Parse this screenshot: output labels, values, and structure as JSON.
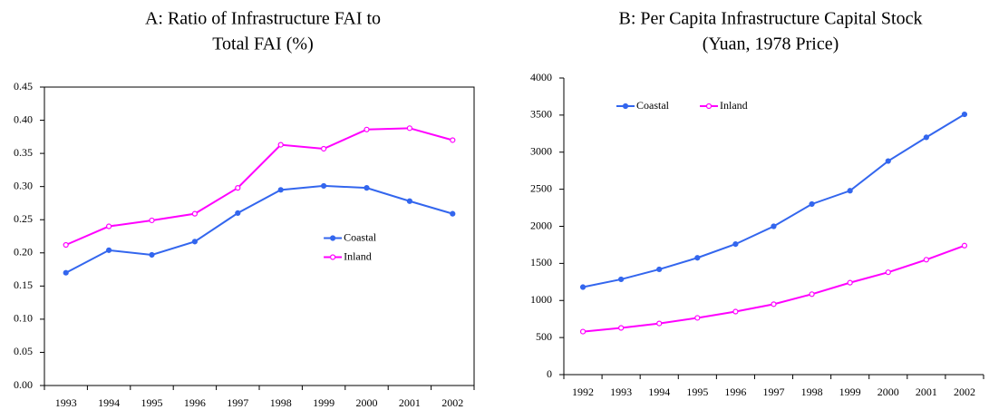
{
  "chart_data": [
    {
      "type": "line",
      "title": [
        "A: Ratio of Infrastructure FAI to",
        "Total FAI (%)"
      ],
      "categories": [
        "1993",
        "1994",
        "1995",
        "1996",
        "1997",
        "1998",
        "1999",
        "2000",
        "2001",
        "2002"
      ],
      "series": [
        {
          "name": "Coastal",
          "color": "#3366ee",
          "values": [
            0.17,
            0.204,
            0.197,
            0.217,
            0.26,
            0.295,
            0.301,
            0.298,
            0.278,
            0.259
          ]
        },
        {
          "name": "Inland",
          "color": "#ff00ff",
          "values": [
            0.212,
            0.24,
            0.249,
            0.259,
            0.298,
            0.363,
            0.357,
            0.386,
            0.388,
            0.37
          ]
        }
      ],
      "ylim": [
        0,
        0.45
      ],
      "yticks": [
        {
          "value": 0,
          "label": "0.00"
        },
        0.05,
        {
          "value": 0.1,
          "label": "0.10"
        },
        0.15,
        {
          "value": 0.2,
          "label": "0.20"
        },
        0.25,
        {
          "value": 0.3,
          "label": "0.30"
        },
        0.35,
        {
          "value": 0.4,
          "label": "0.40"
        },
        0.45
      ],
      "legend": "center right",
      "grid": false
    },
    {
      "type": "line",
      "title": [
        "B: Per Capita Infrastructure Capital Stock",
        "(Yuan, 1978 Price)"
      ],
      "categories": [
        "1992",
        "1993",
        "1994",
        "1995",
        "1996",
        "1997",
        "1998",
        "1999",
        "2000",
        "2001",
        "2002"
      ],
      "series": [
        {
          "name": "Coastal",
          "color": "#3366ee",
          "values": [
            1180,
            1285,
            1420,
            1575,
            1760,
            2000,
            2300,
            2480,
            2880,
            3200,
            3510
          ]
        },
        {
          "name": "Inland",
          "color": "#ff00ff",
          "values": [
            580,
            630,
            690,
            765,
            850,
            950,
            1085,
            1240,
            1380,
            1550,
            1740
          ]
        }
      ],
      "ylim": [
        0,
        4000
      ],
      "yticks": [
        0,
        500,
        1000,
        1500,
        2000,
        2500,
        3000,
        3500,
        4000
      ],
      "legend": "upper left",
      "grid": false
    }
  ]
}
